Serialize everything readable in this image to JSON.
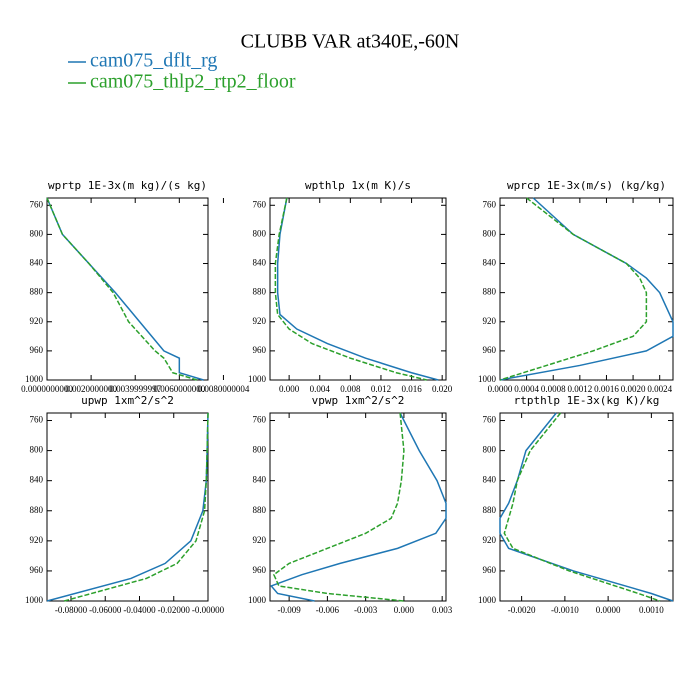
{
  "title": "CLUBB VAR at340E,-60N",
  "chart_data": [
    {
      "type": "profile",
      "title": "wprtp  1E-3x(m kg)/(s kg)",
      "levels": [
        750,
        800,
        840,
        880,
        920,
        960,
        970,
        990,
        1000
      ],
      "series": [
        {
          "name": "cam075_dflt_rg",
          "color": "#1f77b4",
          "style": "solid",
          "values": [
            0,
            0.0007,
            0.0019,
            0.0031,
            0.0042,
            0.0053,
            0.006,
            0.006,
            0.0071
          ]
        },
        {
          "name": "cam075_thlp2_rtp2_floor",
          "color": "#2ca02c",
          "style": "dashed",
          "values": [
            0,
            0.0007,
            0.0019,
            0.003,
            0.0037,
            0.0049,
            0.0053,
            0.0057,
            0.0068
          ]
        }
      ],
      "xlim": [
        0,
        0.0073
      ],
      "ylim": [
        1000,
        750
      ],
      "xticks": [
        {
          "value": 0,
          "label": "0.0000000000"
        },
        {
          "value": 0.002,
          "label": "0.0020000000"
        },
        {
          "value": 0.004,
          "label": "0.0039999997"
        },
        {
          "value": 0.006,
          "label": "0.0060000000"
        },
        {
          "value": 0.008,
          "label": "0.0080000004"
        }
      ],
      "yticks": [
        760,
        800,
        840,
        880,
        920,
        960,
        1000
      ]
    },
    {
      "type": "profile",
      "title": "wpthlp  1x(m K)/s",
      "levels": [
        750,
        800,
        840,
        880,
        910,
        930,
        950,
        970,
        990,
        1000
      ],
      "series": [
        {
          "name": "cam075_dflt_rg",
          "color": "#1f77b4",
          "style": "solid",
          "values": [
            -0.0003,
            -0.0012,
            -0.0015,
            -0.0015,
            -0.0012,
            0.001,
            0.005,
            0.01,
            0.016,
            0.0195
          ]
        },
        {
          "name": "cam075_thlp2_rtp2_floor",
          "color": "#2ca02c",
          "style": "dashed",
          "values": [
            -0.0003,
            -0.0013,
            -0.0018,
            -0.0018,
            -0.0015,
            0,
            0.003,
            0.008,
            0.014,
            0.018
          ]
        }
      ],
      "xlim": [
        -0.0025,
        0.0205
      ],
      "ylim": [
        1000,
        750
      ],
      "xticks": [
        {
          "value": 0,
          "label": "0.000"
        },
        0.004,
        0.008,
        0.012,
        0.016,
        {
          "value": 0.02,
          "label": "0.020"
        }
      ],
      "yticks": [
        760,
        800,
        840,
        880,
        920,
        960,
        1000
      ]
    },
    {
      "type": "profile",
      "title": "wprcp  1E-3x(m/s) (kg/kg)",
      "levels": [
        750,
        800,
        840,
        860,
        880,
        920,
        940,
        960,
        980,
        1000
      ],
      "series": [
        {
          "name": "cam075_dflt_rg",
          "color": "#1f77b4",
          "style": "solid",
          "values": [
            0.0005,
            0.0011,
            0.0019,
            0.0022,
            0.0024,
            0.0026,
            0.0026,
            0.0022,
            0.0012,
            0
          ]
        },
        {
          "name": "cam075_thlp2_rtp2_floor",
          "color": "#2ca02c",
          "style": "dashed",
          "values": [
            0.0004,
            0.0011,
            0.0019,
            0.0021,
            0.0022,
            0.0022,
            0.002,
            0.0014,
            0.0007,
            0
          ]
        }
      ],
      "xlim": [
        0,
        0.0026
      ],
      "ylim": [
        1000,
        750
      ],
      "xticks": [
        {
          "value": 0,
          "label": "0.0000"
        },
        0.0004,
        0.0008,
        0.0012,
        0.0016,
        {
          "value": 0.002,
          "label": "0.0020"
        },
        0.0024
      ],
      "yticks": [
        760,
        800,
        840,
        880,
        920,
        960,
        1000
      ]
    },
    {
      "type": "profile",
      "title": "upwp  1xm^2/s^2",
      "levels": [
        750,
        800,
        840,
        880,
        920,
        950,
        970,
        1000
      ],
      "series": [
        {
          "name": "cam075_dflt_rg",
          "color": "#1f77b4",
          "style": "solid",
          "values": [
            0,
            -0.0005,
            -0.001,
            -0.003,
            -0.01,
            -0.025,
            -0.045,
            -0.094
          ]
        },
        {
          "name": "cam075_thlp2_rtp2_floor",
          "color": "#2ca02c",
          "style": "dashed",
          "values": [
            0,
            -0.0005,
            -0.001,
            -0.002,
            -0.007,
            -0.018,
            -0.036,
            -0.084
          ]
        }
      ],
      "xlim": [
        -0.094,
        0
      ],
      "ylim": [
        1000,
        750
      ],
      "xticks": [
        {
          "value": -0.08,
          "label": "-0.08000"
        },
        {
          "value": -0.06,
          "label": "-0.06000"
        },
        {
          "value": -0.04,
          "label": "-0.04000"
        },
        {
          "value": -0.02,
          "label": "-0.02000"
        },
        {
          "value": 0,
          "label": "-0.00000"
        }
      ],
      "yticks": [
        760,
        800,
        840,
        880,
        920,
        960,
        1000
      ]
    },
    {
      "type": "profile",
      "title": "vpwp  1xm^2/s^2",
      "levels": [
        750,
        800,
        840,
        870,
        890,
        910,
        930,
        950,
        965,
        980,
        990,
        1000
      ],
      "series": [
        {
          "name": "cam075_dflt_rg",
          "color": "#1f77b4",
          "style": "solid",
          "values": [
            -0.0003,
            0.0012,
            0.0026,
            0.0033,
            0.0033,
            0.0025,
            -0.0005,
            -0.005,
            -0.008,
            -0.0104,
            -0.0099,
            -0.007
          ]
        },
        {
          "name": "cam075_thlp2_rtp2_floor",
          "color": "#2ca02c",
          "style": "dashed",
          "values": [
            -0.0003,
            0,
            -0.0002,
            -0.0005,
            -0.001,
            -0.003,
            -0.006,
            -0.009,
            -0.0102,
            -0.0098,
            -0.006,
            0
          ]
        }
      ],
      "xlim": [
        -0.0105,
        0.0033
      ],
      "ylim": [
        1000,
        750
      ],
      "xticks": [
        -0.009,
        -0.006,
        -0.003,
        {
          "value": 0,
          "label": "0.000"
        },
        0.003
      ],
      "yticks": [
        760,
        800,
        840,
        880,
        920,
        960,
        1000
      ]
    },
    {
      "type": "profile",
      "title": "rtpthlp  1E-3x(kg K)/kg",
      "levels": [
        750,
        800,
        840,
        870,
        890,
        910,
        930,
        960,
        990,
        1000
      ],
      "series": [
        {
          "name": "cam075_dflt_rg",
          "color": "#1f77b4",
          "style": "solid",
          "values": [
            -0.0012,
            -0.0019,
            -0.0021,
            -0.0023,
            -0.0025,
            -0.0025,
            -0.0023,
            -0.0008,
            0.001,
            0.0015
          ]
        },
        {
          "name": "cam075_thlp2_rtp2_floor",
          "color": "#2ca02c",
          "style": "dashed",
          "values": [
            -0.0011,
            -0.0018,
            -0.0021,
            -0.0022,
            -0.0023,
            -0.0024,
            -0.0022,
            -0.0009,
            0.0007,
            0.0012
          ]
        }
      ],
      "xlim": [
        -0.0025,
        0.0015
      ],
      "ylim": [
        1000,
        750
      ],
      "xticks": [
        {
          "value": -0.002,
          "label": "-0.0020"
        },
        {
          "value": -0.001,
          "label": "-0.0010"
        },
        {
          "value": 0,
          "label": "0.0000"
        },
        {
          "value": 0.001,
          "label": "0.0010"
        }
      ],
      "yticks": [
        760,
        800,
        840,
        880,
        920,
        960,
        1000
      ]
    }
  ]
}
